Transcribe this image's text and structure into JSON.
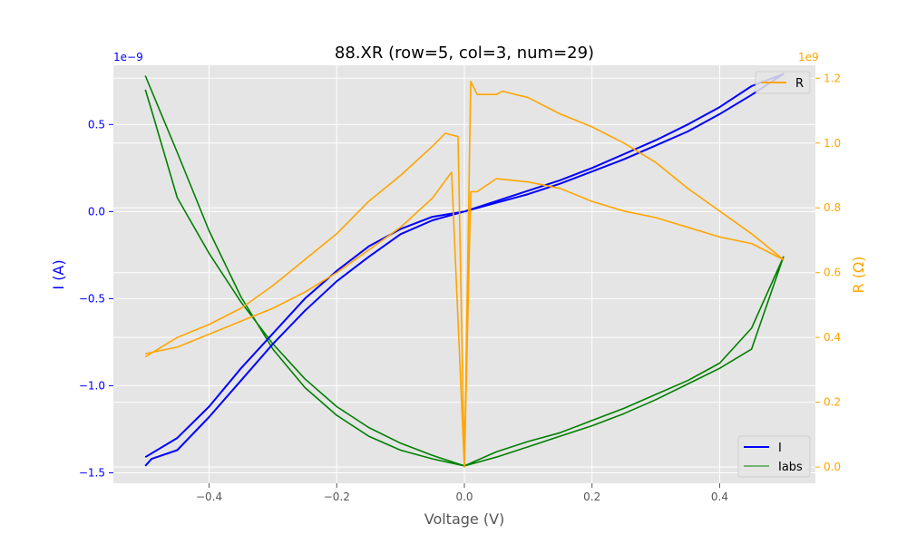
{
  "chart_data": {
    "type": "line",
    "title": "88.XR (row=5, col=3, num=29)",
    "xlabel": "Voltage (V)",
    "ylabel_left": "I (A)",
    "ylabel_right": "R (Ω)",
    "left_axis_multiplier": "1e−9",
    "right_axis_multiplier": "1e9",
    "xlim": [
      -0.55,
      0.55
    ],
    "ylim_left": [
      -1.56,
      0.84
    ],
    "ylim_right": [
      -0.05,
      1.24
    ],
    "x_ticks": [
      "−0.4",
      "−0.2",
      "0.0",
      "0.2",
      "0.4"
    ],
    "x_tick_values": [
      -0.4,
      -0.2,
      0.0,
      0.2,
      0.4
    ],
    "left_ticks": [
      "−1.5",
      "−1.0",
      "−0.5",
      "0.0",
      "0.5"
    ],
    "left_tick_values": [
      -1.5,
      -1.0,
      -0.5,
      0.0,
      0.5
    ],
    "right_ticks": [
      "0.0",
      "0.2",
      "0.4",
      "0.6",
      "0.8",
      "1.0",
      "1.2"
    ],
    "right_tick_values": [
      0.0,
      0.2,
      0.4,
      0.6,
      0.8,
      1.0,
      1.2
    ],
    "grid": true,
    "legend_right": {
      "placement": "top-right",
      "entries": [
        "R"
      ]
    },
    "legend_left": {
      "placement": "bottom-right",
      "entries": [
        "I",
        "Iabs"
      ]
    },
    "colors": {
      "I": "#0000ff",
      "Iabs": "#008000",
      "R": "#ffa500",
      "left_axis": "#0000ff",
      "right_axis": "#ffa500",
      "plot_bg": "#e5e5e5"
    },
    "series": [
      {
        "name": "I",
        "axis": "left",
        "x": [
          -0.5,
          -0.45,
          -0.4,
          -0.35,
          -0.3,
          -0.25,
          -0.2,
          -0.15,
          -0.1,
          -0.05,
          0.0,
          0.05,
          0.1,
          0.15,
          0.2,
          0.25,
          0.3,
          0.35,
          0.4,
          0.45,
          0.5,
          0.45,
          0.4,
          0.35,
          0.3,
          0.25,
          0.2,
          0.15,
          0.1,
          0.05,
          0.0,
          -0.05,
          -0.1,
          -0.15,
          -0.2,
          -0.25,
          -0.3,
          -0.35,
          -0.4,
          -0.45,
          -0.49,
          -0.5
        ],
        "values": [
          -1.41,
          -1.3,
          -1.12,
          -0.9,
          -0.7,
          -0.5,
          -0.34,
          -0.2,
          -0.1,
          -0.03,
          0.0,
          0.05,
          0.1,
          0.16,
          0.23,
          0.3,
          0.38,
          0.46,
          0.56,
          0.67,
          0.79,
          0.72,
          0.6,
          0.5,
          0.41,
          0.33,
          0.25,
          0.18,
          0.12,
          0.06,
          0.0,
          -0.05,
          -0.13,
          -0.26,
          -0.4,
          -0.57,
          -0.76,
          -0.97,
          -1.18,
          -1.37,
          -1.42,
          -1.46
        ]
      },
      {
        "name": "Iabs",
        "axis": "left",
        "x": [
          -0.5,
          -0.45,
          -0.4,
          -0.35,
          -0.3,
          -0.25,
          -0.2,
          -0.15,
          -0.1,
          -0.05,
          0.0,
          0.05,
          0.1,
          0.15,
          0.2,
          0.25,
          0.3,
          0.35,
          0.4,
          0.45,
          0.5,
          0.45,
          0.4,
          0.35,
          0.3,
          0.25,
          0.2,
          0.15,
          0.1,
          0.05,
          0.0,
          -0.05,
          -0.1,
          -0.15,
          -0.2,
          -0.25,
          -0.3,
          -0.35,
          -0.4,
          -0.45,
          -0.49,
          -0.5
        ],
        "values": [
          0.78,
          0.34,
          -0.11,
          -0.49,
          -0.79,
          -1.01,
          -1.17,
          -1.29,
          -1.37,
          -1.42,
          -1.46,
          -1.41,
          -1.35,
          -1.29,
          -1.23,
          -1.16,
          -1.08,
          -0.99,
          -0.9,
          -0.79,
          -0.26,
          -0.67,
          -0.87,
          -0.97,
          -1.05,
          -1.13,
          -1.2,
          -1.27,
          -1.32,
          -1.38,
          -1.46,
          -1.4,
          -1.33,
          -1.24,
          -1.12,
          -0.96,
          -0.76,
          -0.52,
          -0.24,
          0.08,
          0.58,
          0.7
        ]
      },
      {
        "name": "R",
        "axis": "right",
        "x": [
          -0.5,
          -0.45,
          -0.4,
          -0.35,
          -0.3,
          -0.25,
          -0.2,
          -0.15,
          -0.1,
          -0.05,
          -0.02,
          0.0,
          0.01,
          0.02,
          0.05,
          0.1,
          0.15,
          0.2,
          0.25,
          0.3,
          0.35,
          0.4,
          0.45,
          0.5,
          0.45,
          0.4,
          0.35,
          0.3,
          0.25,
          0.2,
          0.15,
          0.1,
          0.06,
          0.05,
          0.02,
          0.01,
          0.0,
          -0.01,
          -0.03,
          -0.05,
          -0.1,
          -0.15,
          -0.2,
          -0.25,
          -0.3,
          -0.35,
          -0.4,
          -0.45,
          -0.5
        ],
        "values": [
          0.35,
          0.37,
          0.41,
          0.45,
          0.49,
          0.54,
          0.6,
          0.67,
          0.74,
          0.83,
          0.91,
          0.0,
          0.85,
          0.85,
          0.89,
          0.88,
          0.86,
          0.82,
          0.79,
          0.77,
          0.74,
          0.71,
          0.69,
          0.64,
          0.72,
          0.79,
          0.86,
          0.94,
          1.0,
          1.05,
          1.09,
          1.14,
          1.16,
          1.15,
          1.15,
          1.19,
          0.0,
          1.02,
          1.03,
          0.99,
          0.9,
          0.82,
          0.72,
          0.64,
          0.56,
          0.49,
          0.44,
          0.4,
          0.34
        ]
      }
    ]
  }
}
